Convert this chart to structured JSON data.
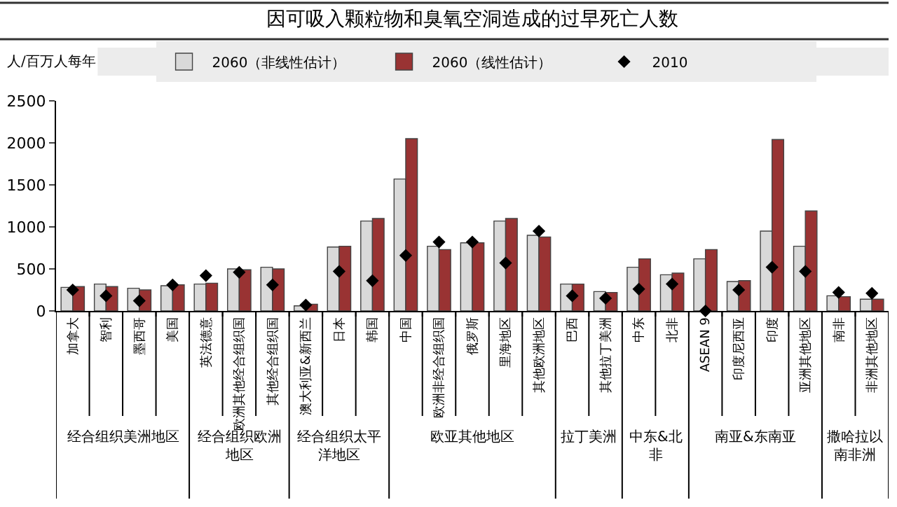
{
  "chart_data": {
    "type": "bar",
    "title": "因可吸入颗粒物和臭氧空洞造成的过早死亡人数",
    "ylabel": "人/百万人每年",
    "categories": [
      "加拿大",
      "智利",
      "墨西哥",
      "美国",
      "英法德意",
      "欧洲其他经合组织国",
      "其他经合组织国",
      "澳大利亚&新西兰",
      "日本",
      "韩国",
      "中国",
      "欧洲非经合组织国",
      "俄罗斯",
      "里海地区",
      "其他欧洲地区",
      "巴西",
      "其他拉丁美洲",
      "中东",
      "北非",
      "ASEAN 9",
      "印度尼西亚",
      "印度",
      "亚洲其他地区",
      "南非",
      "非洲其他地区"
    ],
    "series": [
      {
        "name": "2060（非线性估计）",
        "color": "#d9d9d9",
        "values": [
          280,
          320,
          270,
          300,
          320,
          500,
          520,
          60,
          760,
          1070,
          1570,
          770,
          810,
          1070,
          900,
          320,
          230,
          520,
          430,
          620,
          350,
          950,
          770,
          180,
          140
        ]
      },
      {
        "name": "2060（线性估计）",
        "color": "#993333",
        "values": [
          290,
          290,
          250,
          310,
          330,
          490,
          500,
          80,
          770,
          1100,
          2050,
          730,
          810,
          1100,
          880,
          320,
          220,
          620,
          450,
          730,
          360,
          2040,
          1190,
          170,
          140
        ]
      },
      {
        "name": "2010",
        "type": "scatter",
        "color": "#000000",
        "values": [
          250,
          180,
          120,
          310,
          420,
          460,
          310,
          70,
          470,
          360,
          660,
          820,
          820,
          570,
          950,
          180,
          150,
          260,
          320,
          0,
          250,
          520,
          470,
          220,
          210
        ]
      }
    ],
    "marker": "diamond",
    "ylim": [
      0,
      2500
    ],
    "yticks": [
      0,
      500,
      1000,
      1500,
      2000,
      2500
    ],
    "grid": false,
    "legend": "top",
    "annotations": [
      "经合组织美洲地区",
      "经合组织欧洲地区",
      "经合组织太平洋地区",
      "欧亚其他地区",
      "拉丁美洲",
      "中东&北非",
      "南亚&东南亚",
      "撒哈拉以南非洲"
    ]
  }
}
